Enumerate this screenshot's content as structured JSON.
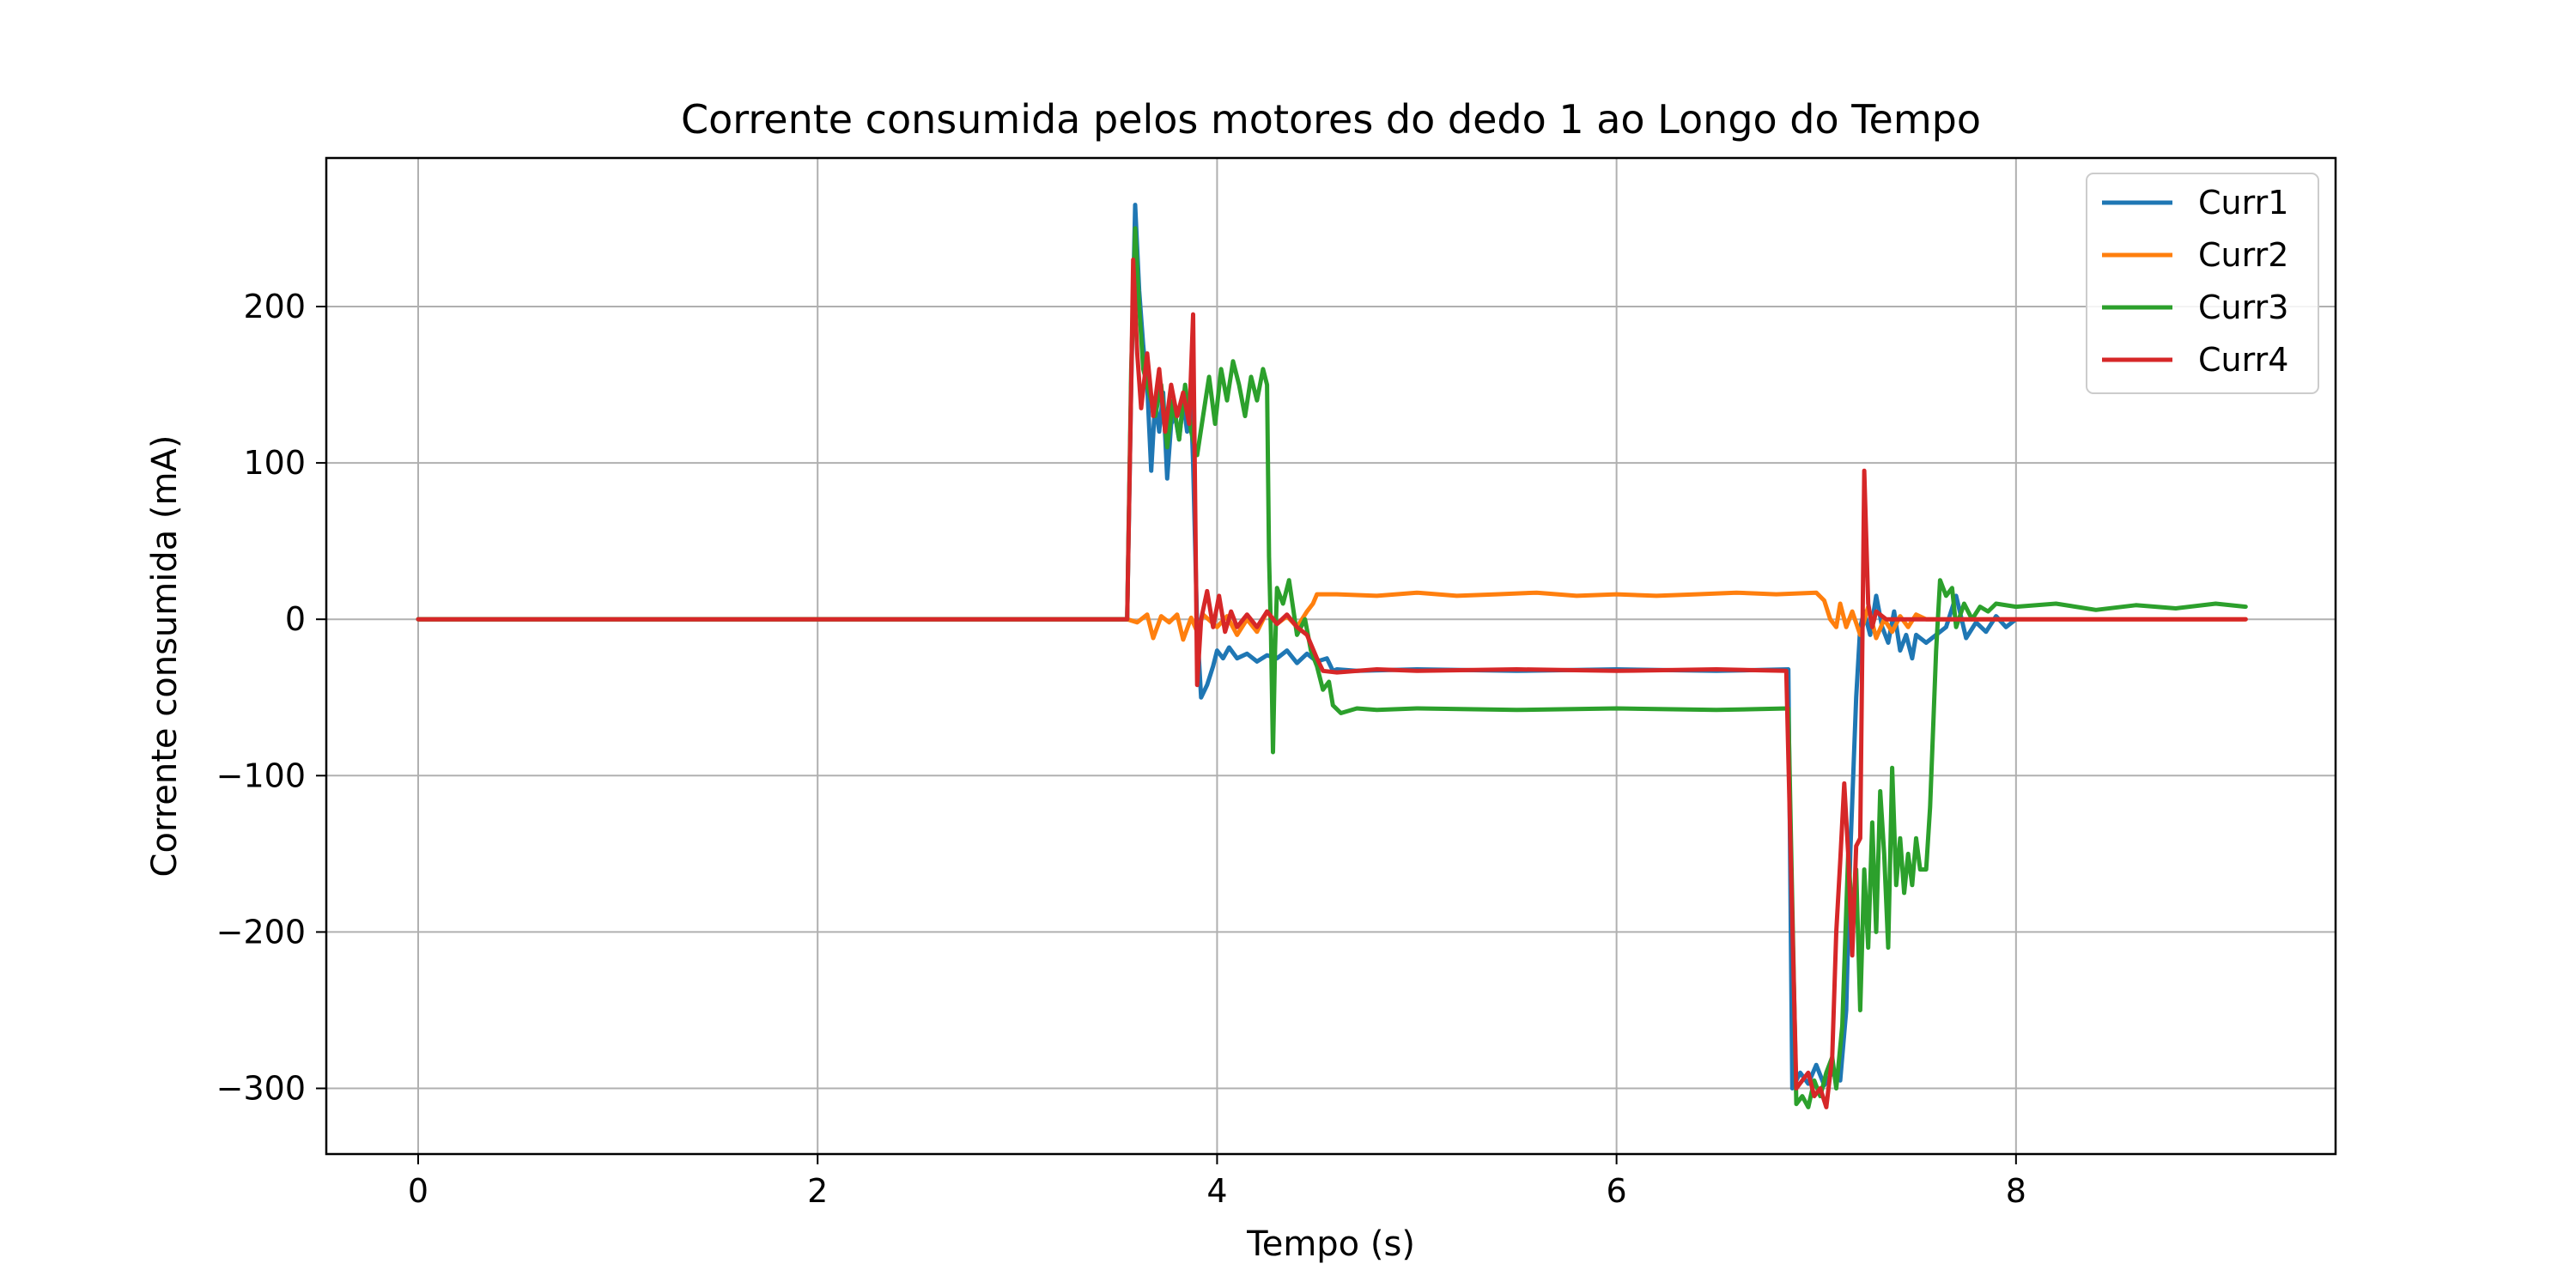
{
  "chart_data": {
    "type": "line",
    "title": "Corrente consumida pelos motores do dedo 1 ao Longo do Tempo",
    "xlabel": "Tempo (s)",
    "ylabel": "Corrente consumida (mA)",
    "xlim": [
      -0.46,
      9.6
    ],
    "ylim": [
      -342,
      295
    ],
    "x_ticks": [
      0,
      2,
      4,
      6,
      8
    ],
    "x_tick_labels": [
      "0",
      "2",
      "4",
      "6",
      "8"
    ],
    "y_ticks": [
      -300,
      -200,
      -100,
      0,
      100,
      200
    ],
    "y_tick_labels": [
      "−300",
      "−200",
      "−100",
      "0",
      "100",
      "200"
    ],
    "grid": true,
    "legend_position": "top-right",
    "series": [
      {
        "name": "Curr1",
        "color": "#1f77b4",
        "points": [
          [
            0,
            0
          ],
          [
            3.55,
            0
          ],
          [
            3.57,
            150
          ],
          [
            3.59,
            265
          ],
          [
            3.61,
            210
          ],
          [
            3.63,
            175
          ],
          [
            3.65,
            150
          ],
          [
            3.67,
            95
          ],
          [
            3.69,
            140
          ],
          [
            3.71,
            120
          ],
          [
            3.73,
            145
          ],
          [
            3.75,
            90
          ],
          [
            3.77,
            125
          ],
          [
            3.79,
            130
          ],
          [
            3.81,
            115
          ],
          [
            3.83,
            140
          ],
          [
            3.85,
            120
          ],
          [
            3.87,
            135
          ],
          [
            3.88,
            100
          ],
          [
            3.9,
            -5
          ],
          [
            3.92,
            -50
          ],
          [
            3.95,
            -42
          ],
          [
            3.98,
            -30
          ],
          [
            4.0,
            -20
          ],
          [
            4.03,
            -25
          ],
          [
            4.06,
            -18
          ],
          [
            4.1,
            -25
          ],
          [
            4.15,
            -22
          ],
          [
            4.2,
            -27
          ],
          [
            4.25,
            -23
          ],
          [
            4.3,
            -25
          ],
          [
            4.35,
            -20
          ],
          [
            4.4,
            -28
          ],
          [
            4.45,
            -22
          ],
          [
            4.5,
            -27
          ],
          [
            4.55,
            -25
          ],
          [
            4.58,
            -33
          ],
          [
            4.6,
            -32
          ],
          [
            4.7,
            -33
          ],
          [
            5.0,
            -32
          ],
          [
            5.5,
            -33
          ],
          [
            6.0,
            -32
          ],
          [
            6.5,
            -33
          ],
          [
            6.86,
            -32
          ],
          [
            6.88,
            -300
          ],
          [
            6.92,
            -290
          ],
          [
            6.96,
            -297
          ],
          [
            7.0,
            -285
          ],
          [
            7.04,
            -298
          ],
          [
            7.08,
            -290
          ],
          [
            7.12,
            -295
          ],
          [
            7.15,
            -250
          ],
          [
            7.17,
            -150
          ],
          [
            7.2,
            -50
          ],
          [
            7.22,
            -5
          ],
          [
            7.24,
            5
          ],
          [
            7.27,
            -10
          ],
          [
            7.3,
            15
          ],
          [
            7.33,
            -5
          ],
          [
            7.36,
            -15
          ],
          [
            7.39,
            5
          ],
          [
            7.42,
            -20
          ],
          [
            7.45,
            -10
          ],
          [
            7.48,
            -25
          ],
          [
            7.5,
            -10
          ],
          [
            7.55,
            -15
          ],
          [
            7.6,
            -10
          ],
          [
            7.65,
            -5
          ],
          [
            7.7,
            15
          ],
          [
            7.75,
            -12
          ],
          [
            7.8,
            -2
          ],
          [
            7.85,
            -8
          ],
          [
            7.9,
            2
          ],
          [
            7.95,
            -5
          ],
          [
            8.0,
            0
          ]
        ]
      },
      {
        "name": "Curr2",
        "color": "#ff7f0e",
        "points": [
          [
            0,
            0
          ],
          [
            3.55,
            0
          ],
          [
            3.6,
            -2
          ],
          [
            3.65,
            3
          ],
          [
            3.68,
            -12
          ],
          [
            3.72,
            2
          ],
          [
            3.76,
            -2
          ],
          [
            3.8,
            3
          ],
          [
            3.83,
            -13
          ],
          [
            3.87,
            1
          ],
          [
            3.9,
            -8
          ],
          [
            3.93,
            3
          ],
          [
            4.0,
            -5
          ],
          [
            4.05,
            2
          ],
          [
            4.1,
            -10
          ],
          [
            4.15,
            0
          ],
          [
            4.2,
            -8
          ],
          [
            4.25,
            5
          ],
          [
            4.3,
            -3
          ],
          [
            4.35,
            2
          ],
          [
            4.4,
            -5
          ],
          [
            4.45,
            5
          ],
          [
            4.48,
            10
          ],
          [
            4.5,
            16
          ],
          [
            4.6,
            16
          ],
          [
            4.8,
            15
          ],
          [
            5.0,
            17
          ],
          [
            5.2,
            15
          ],
          [
            5.4,
            16
          ],
          [
            5.6,
            17
          ],
          [
            5.8,
            15
          ],
          [
            6.0,
            16
          ],
          [
            6.2,
            15
          ],
          [
            6.4,
            16
          ],
          [
            6.6,
            17
          ],
          [
            6.8,
            16
          ],
          [
            7.0,
            17
          ],
          [
            7.04,
            12
          ],
          [
            7.07,
            0
          ],
          [
            7.1,
            -5
          ],
          [
            7.12,
            10
          ],
          [
            7.15,
            -5
          ],
          [
            7.18,
            5
          ],
          [
            7.22,
            -10
          ],
          [
            7.26,
            8
          ],
          [
            7.3,
            -12
          ],
          [
            7.34,
            0
          ],
          [
            7.38,
            -8
          ],
          [
            7.42,
            2
          ],
          [
            7.46,
            -5
          ],
          [
            7.5,
            3
          ],
          [
            7.55,
            0
          ],
          [
            7.7,
            0
          ],
          [
            8.0,
            0
          ],
          [
            9.15,
            0
          ]
        ]
      },
      {
        "name": "Curr3",
        "color": "#2ca02c",
        "points": [
          [
            0,
            0
          ],
          [
            3.55,
            0
          ],
          [
            3.57,
            160
          ],
          [
            3.59,
            250
          ],
          [
            3.61,
            200
          ],
          [
            3.63,
            160
          ],
          [
            3.66,
            145
          ],
          [
            3.69,
            130
          ],
          [
            3.72,
            150
          ],
          [
            3.75,
            110
          ],
          [
            3.78,
            140
          ],
          [
            3.81,
            115
          ],
          [
            3.84,
            150
          ],
          [
            3.87,
            120
          ],
          [
            3.9,
            105
          ],
          [
            3.93,
            130
          ],
          [
            3.96,
            155
          ],
          [
            3.99,
            125
          ],
          [
            4.02,
            160
          ],
          [
            4.05,
            140
          ],
          [
            4.08,
            165
          ],
          [
            4.11,
            150
          ],
          [
            4.14,
            130
          ],
          [
            4.17,
            155
          ],
          [
            4.2,
            140
          ],
          [
            4.23,
            160
          ],
          [
            4.25,
            150
          ],
          [
            4.26,
            40
          ],
          [
            4.27,
            -10
          ],
          [
            4.28,
            -85
          ],
          [
            4.29,
            -20
          ],
          [
            4.3,
            20
          ],
          [
            4.33,
            10
          ],
          [
            4.36,
            25
          ],
          [
            4.4,
            -10
          ],
          [
            4.44,
            0
          ],
          [
            4.47,
            -20
          ],
          [
            4.5,
            -30
          ],
          [
            4.53,
            -45
          ],
          [
            4.56,
            -40
          ],
          [
            4.58,
            -55
          ],
          [
            4.62,
            -60
          ],
          [
            4.7,
            -57
          ],
          [
            4.8,
            -58
          ],
          [
            5.0,
            -57
          ],
          [
            5.5,
            -58
          ],
          [
            6.0,
            -57
          ],
          [
            6.5,
            -58
          ],
          [
            6.86,
            -57
          ],
          [
            6.9,
            -310
          ],
          [
            6.93,
            -305
          ],
          [
            6.96,
            -312
          ],
          [
            6.99,
            -295
          ],
          [
            7.02,
            -305
          ],
          [
            7.05,
            -290
          ],
          [
            7.08,
            -280
          ],
          [
            7.1,
            -300
          ],
          [
            7.13,
            -260
          ],
          [
            7.16,
            -150
          ],
          [
            7.18,
            -190
          ],
          [
            7.2,
            -160
          ],
          [
            7.22,
            -250
          ],
          [
            7.24,
            -160
          ],
          [
            7.26,
            -210
          ],
          [
            7.28,
            -130
          ],
          [
            7.3,
            -200
          ],
          [
            7.32,
            -110
          ],
          [
            7.34,
            -150
          ],
          [
            7.36,
            -210
          ],
          [
            7.38,
            -95
          ],
          [
            7.4,
            -170
          ],
          [
            7.42,
            -140
          ],
          [
            7.44,
            -175
          ],
          [
            7.46,
            -150
          ],
          [
            7.48,
            -170
          ],
          [
            7.5,
            -140
          ],
          [
            7.52,
            -160
          ],
          [
            7.55,
            -160
          ],
          [
            7.57,
            -120
          ],
          [
            7.6,
            -20
          ],
          [
            7.62,
            25
          ],
          [
            7.65,
            15
          ],
          [
            7.68,
            20
          ],
          [
            7.7,
            -5
          ],
          [
            7.74,
            10
          ],
          [
            7.78,
            0
          ],
          [
            7.82,
            8
          ],
          [
            7.86,
            5
          ],
          [
            7.9,
            10
          ],
          [
            8.0,
            8
          ],
          [
            8.2,
            10
          ],
          [
            8.4,
            6
          ],
          [
            8.6,
            9
          ],
          [
            8.8,
            7
          ],
          [
            9.0,
            10
          ],
          [
            9.15,
            8
          ]
        ]
      },
      {
        "name": "Curr4",
        "color": "#d62728",
        "points": [
          [
            0,
            0
          ],
          [
            3.55,
            0
          ],
          [
            3.57,
            150
          ],
          [
            3.58,
            230
          ],
          [
            3.6,
            170
          ],
          [
            3.62,
            135
          ],
          [
            3.65,
            170
          ],
          [
            3.68,
            130
          ],
          [
            3.71,
            160
          ],
          [
            3.74,
            120
          ],
          [
            3.77,
            150
          ],
          [
            3.8,
            130
          ],
          [
            3.83,
            145
          ],
          [
            3.86,
            125
          ],
          [
            3.88,
            195
          ],
          [
            3.9,
            -42
          ],
          [
            3.92,
            0
          ],
          [
            3.95,
            18
          ],
          [
            3.98,
            -5
          ],
          [
            4.01,
            15
          ],
          [
            4.04,
            -8
          ],
          [
            4.07,
            5
          ],
          [
            4.1,
            -5
          ],
          [
            4.15,
            3
          ],
          [
            4.2,
            -5
          ],
          [
            4.25,
            5
          ],
          [
            4.3,
            -3
          ],
          [
            4.35,
            3
          ],
          [
            4.4,
            -5
          ],
          [
            4.45,
            -10
          ],
          [
            4.5,
            -25
          ],
          [
            4.53,
            -33
          ],
          [
            4.6,
            -34
          ],
          [
            4.8,
            -32
          ],
          [
            5.0,
            -33
          ],
          [
            5.5,
            -32
          ],
          [
            6.0,
            -33
          ],
          [
            6.5,
            -32
          ],
          [
            6.85,
            -33
          ],
          [
            6.9,
            -300
          ],
          [
            6.93,
            -295
          ],
          [
            6.96,
            -290
          ],
          [
            6.99,
            -305
          ],
          [
            7.02,
            -300
          ],
          [
            7.05,
            -312
          ],
          [
            7.08,
            -280
          ],
          [
            7.1,
            -200
          ],
          [
            7.12,
            -155
          ],
          [
            7.14,
            -105
          ],
          [
            7.16,
            -150
          ],
          [
            7.18,
            -215
          ],
          [
            7.2,
            -145
          ],
          [
            7.22,
            -140
          ],
          [
            7.24,
            95
          ],
          [
            7.26,
            10
          ],
          [
            7.28,
            -5
          ],
          [
            7.3,
            5
          ],
          [
            7.35,
            0
          ],
          [
            8.0,
            0
          ],
          [
            9.15,
            0
          ]
        ]
      }
    ]
  }
}
